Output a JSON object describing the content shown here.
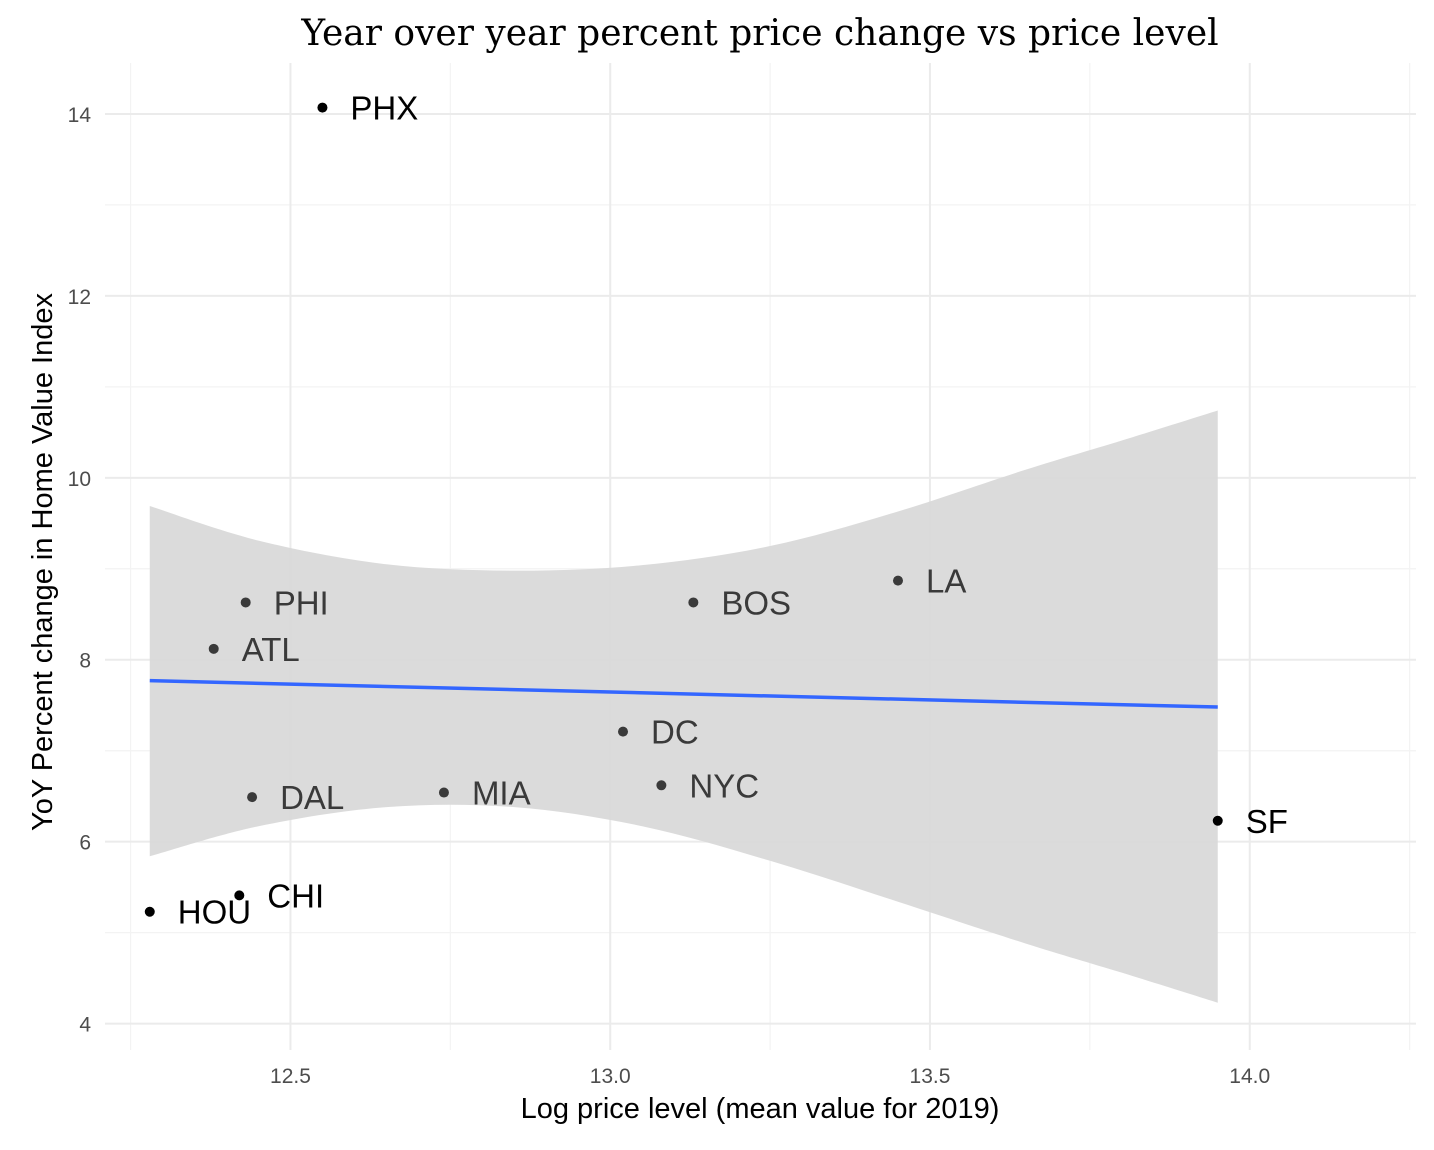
{
  "chart_data": {
    "type": "scatter",
    "title": "Year over year percent price change vs price level",
    "xlabel": "Log price level (mean value for 2019)",
    "ylabel": "YoY Percent change in Home Value Index",
    "xlim": [
      12.21,
      14.26
    ],
    "ylim": [
      3.71,
      14.56
    ],
    "xticks": [
      12.5,
      13.0,
      13.5,
      14.0
    ],
    "xtick_labels": [
      "12.5",
      "13.0",
      "13.5",
      "14.0"
    ],
    "yticks": [
      4,
      6,
      8,
      10,
      12,
      14
    ],
    "ytick_labels": [
      "4",
      "6",
      "8",
      "10",
      "12",
      "14"
    ],
    "grid": true,
    "points": [
      {
        "label": "PHX",
        "x": 12.55,
        "y": 14.07
      },
      {
        "label": "PHI",
        "x": 12.43,
        "y": 8.63
      },
      {
        "label": "ATL",
        "x": 12.38,
        "y": 8.12
      },
      {
        "label": "BOS",
        "x": 13.13,
        "y": 8.63
      },
      {
        "label": "LA",
        "x": 13.45,
        "y": 8.87
      },
      {
        "label": "DC",
        "x": 13.02,
        "y": 7.21
      },
      {
        "label": "NYC",
        "x": 13.08,
        "y": 6.62
      },
      {
        "label": "MIA",
        "x": 12.74,
        "y": 6.54
      },
      {
        "label": "DAL",
        "x": 12.44,
        "y": 6.49
      },
      {
        "label": "SF",
        "x": 13.95,
        "y": 6.23
      },
      {
        "label": "CHI",
        "x": 12.42,
        "y": 5.41
      },
      {
        "label": "HOU",
        "x": 12.28,
        "y": 5.23
      }
    ],
    "trend_line": {
      "x": [
        12.28,
        13.95
      ],
      "y": [
        7.77,
        7.48
      ]
    },
    "confidence_band": {
      "x": [
        12.28,
        12.45,
        12.65,
        12.85,
        13.05,
        13.25,
        13.45,
        13.65,
        13.8,
        13.95
      ],
      "lower": [
        5.84,
        6.17,
        6.38,
        6.38,
        6.17,
        5.79,
        5.34,
        4.88,
        4.56,
        4.23
      ],
      "upper": [
        9.69,
        9.31,
        9.05,
        8.98,
        9.04,
        9.25,
        9.63,
        10.09,
        10.41,
        10.74
      ]
    },
    "colors": {
      "points": "#000000",
      "trend_line": "#3366ff",
      "confidence_band": "#d9d9d9"
    }
  }
}
